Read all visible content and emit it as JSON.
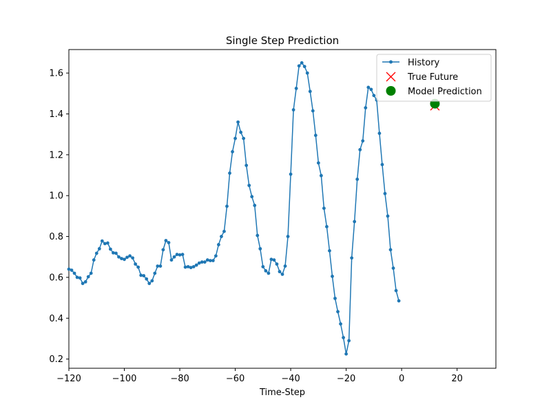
{
  "chart_data": {
    "type": "line",
    "title": "Single Step Prediction",
    "xlabel": "Time-Step",
    "ylabel": "",
    "xlim": [
      -120,
      34
    ],
    "ylim": [
      0.155,
      1.715
    ],
    "x_ticks": [
      -120,
      -100,
      -80,
      -60,
      -40,
      -20,
      0,
      20
    ],
    "y_ticks": [
      0.2,
      0.4,
      0.6,
      0.8,
      1.0,
      1.2,
      1.4,
      1.6
    ],
    "x_tick_labels": [
      "−120",
      "−100",
      "−80",
      "−60",
      "−40",
      "−20",
      "0",
      "20"
    ],
    "y_tick_labels": [
      "0.2",
      "0.4",
      "0.6",
      "0.8",
      "1.0",
      "1.2",
      "1.4",
      "1.6"
    ],
    "grid": false,
    "legend_position": "top-right",
    "series": [
      {
        "name": "History",
        "style": "line-with-dot-markers",
        "color": "#1f77b4",
        "x_start": -120,
        "x_step": 1,
        "values": [
          0.64,
          0.635,
          0.62,
          0.6,
          0.597,
          0.57,
          0.578,
          0.603,
          0.62,
          0.685,
          0.718,
          0.74,
          0.778,
          0.765,
          0.768,
          0.738,
          0.72,
          0.718,
          0.7,
          0.692,
          0.688,
          0.698,
          0.705,
          0.695,
          0.665,
          0.65,
          0.61,
          0.608,
          0.592,
          0.57,
          0.583,
          0.62,
          0.655,
          0.655,
          0.735,
          0.78,
          0.77,
          0.685,
          0.7,
          0.712,
          0.71,
          0.712,
          0.65,
          0.652,
          0.648,
          0.652,
          0.66,
          0.67,
          0.675,
          0.675,
          0.685,
          0.682,
          0.682,
          0.705,
          0.76,
          0.8,
          0.825,
          0.948,
          1.11,
          1.215,
          1.28,
          1.36,
          1.31,
          1.28,
          1.148,
          1.05,
          0.995,
          0.952,
          0.805,
          0.74,
          0.652,
          0.632,
          0.62,
          0.688,
          0.685,
          0.665,
          0.628,
          0.615,
          0.655,
          0.8,
          1.105,
          1.42,
          1.525,
          1.635,
          1.65,
          1.632,
          1.6,
          1.51,
          1.415,
          1.295,
          1.16,
          1.098,
          0.938,
          0.848,
          0.73,
          0.605,
          0.497,
          0.432,
          0.372,
          0.305,
          0.225,
          0.29,
          0.695,
          0.873,
          1.08,
          1.225,
          1.268,
          1.43,
          1.53,
          1.52,
          1.49,
          1.468,
          1.305,
          1.152,
          1.01,
          0.9,
          0.735,
          0.645,
          0.535,
          0.485
        ]
      },
      {
        "name": "True Future",
        "style": "x-marker",
        "color": "#ff0000",
        "points": [
          [
            12,
            1.44
          ]
        ]
      },
      {
        "name": "Model Prediction",
        "style": "circle-marker",
        "color": "#008000",
        "points": [
          [
            12,
            1.45
          ]
        ]
      }
    ]
  }
}
